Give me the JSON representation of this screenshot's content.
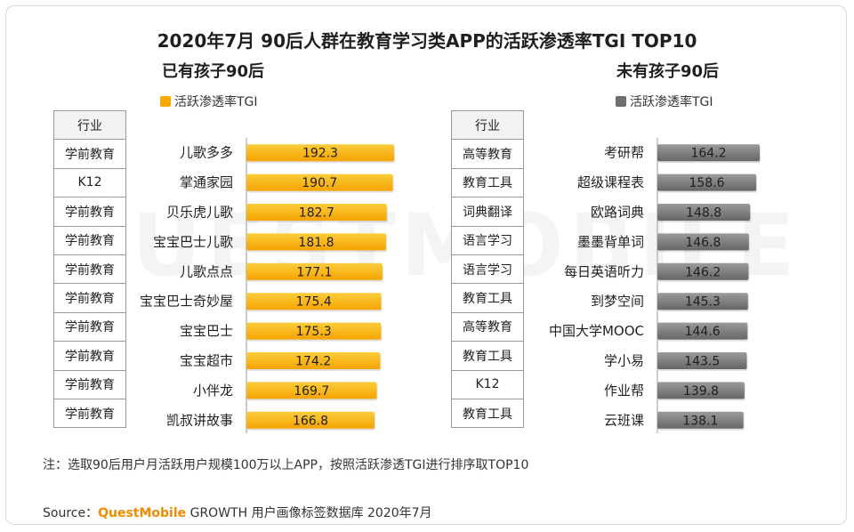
{
  "title": "2020年7月 90后人群在教育学习类APP的活跃渗透率TGI TOP10",
  "watermark": "QUESTMOBILE",
  "note": "注：选取90后用户月活跃用户规模100万以上APP，按照活跃渗透TGI进行排序取TOP10",
  "source": {
    "prefix": "Source：",
    "brand": "QuestMobile",
    "suffix": " GROWTH 用户画像标签数据库 2020年7月"
  },
  "chart_data": [
    {
      "type": "bar",
      "orientation": "horizontal",
      "title": "已有孩子90后",
      "series": [
        {
          "name": "活跃渗透率TGI",
          "values": [
            192.3,
            190.7,
            182.7,
            181.8,
            177.1,
            175.4,
            175.3,
            174.2,
            169.7,
            166.8
          ]
        }
      ],
      "categories": [
        "儿歌多多",
        "掌通家园",
        "贝乐虎儿歌",
        "宝宝巴士儿歌",
        "儿歌点点",
        "宝宝巴士奇妙屋",
        "宝宝巴士",
        "宝宝超市",
        "小伴龙",
        "凯叔讲故事"
      ],
      "industry_header": "行业",
      "industry": [
        "学前教育",
        "K12",
        "学前教育",
        "学前教育",
        "学前教育",
        "学前教育",
        "学前教育",
        "学前教育",
        "学前教育",
        "学前教育"
      ],
      "color": "#f5a800",
      "gradient": [
        "#fbcd3c",
        "#f5a300"
      ]
    },
    {
      "type": "bar",
      "orientation": "horizontal",
      "title": "未有孩子90后",
      "series": [
        {
          "name": "活跃渗透率TGI",
          "values": [
            164.2,
            158.6,
            148.8,
            146.8,
            146.2,
            145.3,
            144.6,
            143.5,
            139.8,
            138.1
          ]
        }
      ],
      "categories": [
        "考研帮",
        "超级课程表",
        "欧路词典",
        "墨墨背单词",
        "每日英语听力",
        "到梦空间",
        "中国大学MOOC",
        "学小易",
        "作业帮",
        "云班课"
      ],
      "industry_header": "行业",
      "industry": [
        "高等教育",
        "教育工具",
        "词典翻译",
        "语言学习",
        "语言学习",
        "教育工具",
        "高等教育",
        "教育工具",
        "K12",
        "教育工具"
      ],
      "color": "#6e6e6e",
      "gradient": [
        "#9b9b9b",
        "#666666"
      ]
    }
  ]
}
